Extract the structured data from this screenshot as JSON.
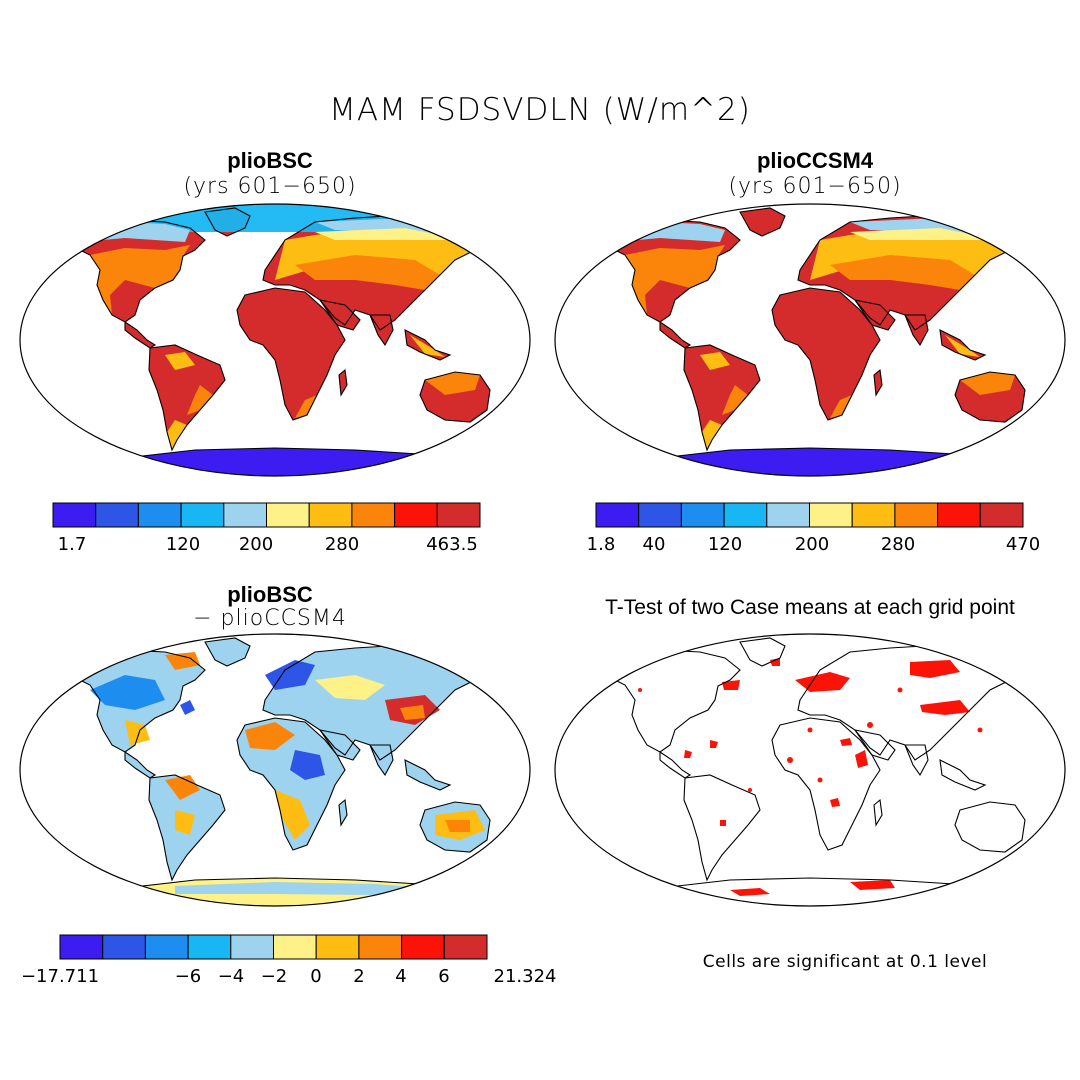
{
  "figure": {
    "title": "MAM FSDSVDLN (W/m^2)"
  },
  "panels": [
    {
      "id": "top-left",
      "title": "plioBSC",
      "subtitle": "(yrs 601−650)",
      "colorbar": {
        "colors": [
          "#3d1cf2",
          "#2d55e6",
          "#1e8df0",
          "#18b6f2",
          "#9dd3ee",
          "#fef187",
          "#fdbd12",
          "#fb840a",
          "#fb1308",
          "#d42c2c"
        ],
        "labels": [
          "1.7",
          "120",
          "200",
          "280",
          "463.5"
        ]
      }
    },
    {
      "id": "top-right",
      "title": "plioCCSM4",
      "subtitle": "(yrs 601−650)",
      "colorbar": {
        "colors": [
          "#3d1cf2",
          "#2d55e6",
          "#1e8df0",
          "#18b6f2",
          "#9dd3ee",
          "#fef187",
          "#fdbd12",
          "#fb840a",
          "#fb1308",
          "#d42c2c"
        ],
        "labels": [
          "1.8",
          "40",
          "120",
          "200",
          "280",
          "470"
        ]
      }
    },
    {
      "id": "bottom-left",
      "title": "plioBSC",
      "subtitle": "− plioCCSM4",
      "colorbar": {
        "colors": [
          "#3d1cf2",
          "#2d55e6",
          "#1e8df0",
          "#18b6f2",
          "#9dd3ee",
          "#fef187",
          "#fdbd12",
          "#fb840a",
          "#fb1308",
          "#d42c2c"
        ],
        "labels": [
          "−17.711",
          "−6",
          "−4",
          "−2",
          "0",
          "2",
          "4",
          "6",
          "21.324"
        ]
      }
    },
    {
      "id": "bottom-right",
      "title": "T-Test of two Case means at each grid point",
      "note": "Cells are significant at 0.1 level",
      "significance_color": "#fb1308"
    }
  ]
}
